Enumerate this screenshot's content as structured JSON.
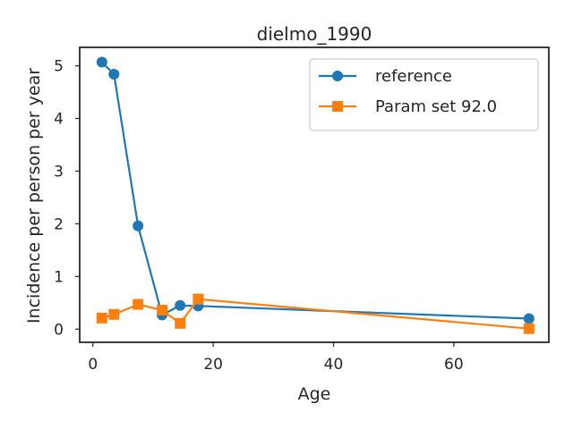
{
  "chart_data": {
    "type": "line",
    "title": "dielmo_1990",
    "xlabel": "Age",
    "ylabel": "Incidence per person per year",
    "xlim": [
      -2.2,
      75.8
    ],
    "ylim": [
      -0.25,
      5.35
    ],
    "xticks": [
      0,
      20,
      40,
      60
    ],
    "yticks": [
      0,
      1,
      2,
      3,
      4,
      5
    ],
    "grid": false,
    "legend_position": "top-right",
    "series": [
      {
        "name": "reference",
        "color": "#1f77b4",
        "marker": "circle",
        "x": [
          1.5,
          3.5,
          7.5,
          11.5,
          14.5,
          17.5,
          72.5
        ],
        "y": [
          5.07,
          4.84,
          1.96,
          0.27,
          0.45,
          0.44,
          0.2
        ]
      },
      {
        "name": "Param set 92.0",
        "color": "#ff7f0e",
        "marker": "square",
        "x": [
          1.5,
          3.5,
          7.5,
          11.5,
          14.5,
          17.5,
          72.5
        ],
        "y": [
          0.21,
          0.28,
          0.47,
          0.36,
          0.11,
          0.57,
          0.01
        ]
      }
    ]
  }
}
